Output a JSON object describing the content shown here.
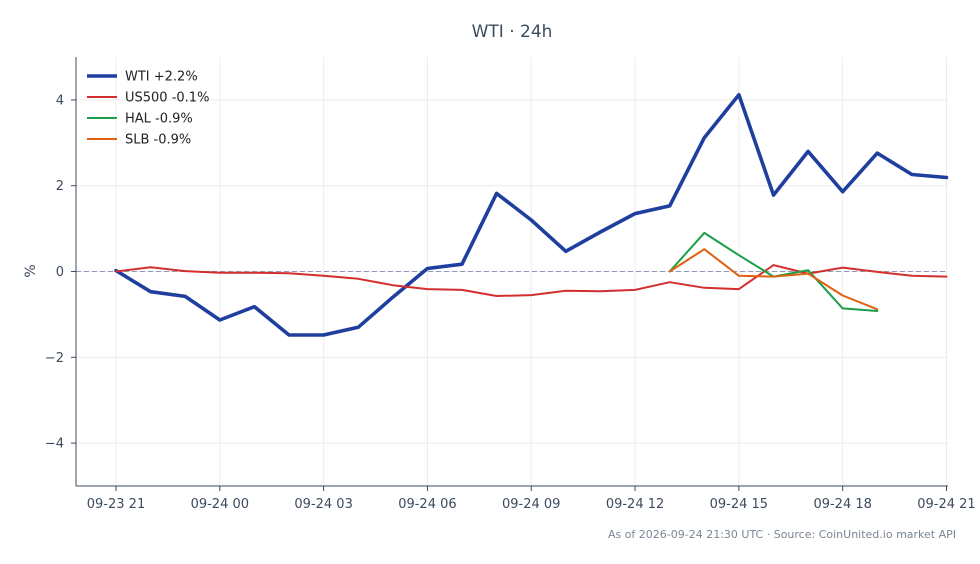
{
  "chart_data": {
    "type": "line",
    "title": "WTI · 24h",
    "xlabel": "",
    "ylabel": "%",
    "ylim": [
      -5,
      5
    ],
    "yticks": [
      -4,
      -2,
      0,
      2,
      4
    ],
    "ytick_labels": [
      "−4",
      "−2",
      "0",
      "2",
      "4"
    ],
    "xlim": [
      0,
      25.2
    ],
    "xticks": [
      0,
      3,
      6,
      9,
      12,
      15,
      18,
      21,
      24
    ],
    "xtick_labels": [
      "09-23 21",
      "09-24 00",
      "09-24 03",
      "09-24 06",
      "09-24 09",
      "09-24 12",
      "09-24 15",
      "09-24 18",
      "09-24 21"
    ],
    "x_axis_note": "hourly points from 09-23 21 to 09-24 21",
    "grid": true,
    "baseline": 0,
    "legend_position": "top-left",
    "series": [
      {
        "name": "WTI +2.2%",
        "color": "#1f3f9e",
        "x": [
          0,
          1,
          2,
          3,
          4,
          5,
          6,
          7,
          8,
          9,
          10,
          11,
          12,
          13,
          14,
          15,
          16,
          17,
          18,
          19,
          20,
          21,
          22,
          23,
          24
        ],
        "values": [
          0.02,
          -0.47,
          -0.58,
          -1.13,
          -0.82,
          -1.48,
          -1.48,
          -1.3,
          -0.6,
          0.07,
          0.17,
          1.82,
          1.2,
          0.47,
          0.92,
          1.35,
          1.53,
          3.12,
          4.12,
          1.78,
          2.8,
          1.86,
          2.76,
          2.26,
          2.19
        ]
      },
      {
        "name": "US500 -0.1%",
        "color": "#d32f2f",
        "x": [
          0,
          1,
          2,
          3,
          4,
          5,
          6,
          7,
          8,
          9,
          10,
          11,
          12,
          13,
          14,
          15,
          16,
          17,
          18,
          19,
          20,
          21,
          22,
          23,
          24
        ],
        "values": [
          0.0,
          0.1,
          0.01,
          -0.03,
          -0.03,
          -0.04,
          -0.1,
          -0.17,
          -0.32,
          -0.41,
          -0.43,
          -0.57,
          -0.55,
          -0.45,
          -0.46,
          -0.43,
          -0.25,
          -0.38,
          -0.41,
          0.15,
          -0.05,
          0.09,
          -0.01,
          -0.1,
          -0.12
        ]
      },
      {
        "name": "HAL -0.9%",
        "color": "#1a9e47",
        "x": [
          16,
          17,
          18,
          19,
          20,
          21,
          22
        ],
        "values": [
          0.0,
          0.9,
          0.38,
          -0.12,
          0.03,
          -0.86,
          -0.92
        ]
      },
      {
        "name": "SLB -0.9%",
        "color": "#e06010",
        "x": [
          16,
          17,
          18,
          19,
          20,
          21,
          22
        ],
        "values": [
          0.0,
          0.52,
          -0.1,
          -0.12,
          -0.05,
          -0.56,
          -0.88
        ]
      }
    ]
  },
  "footer": "As of 2026-09-24 21:30 UTC · Source: CoinUnited.io market API"
}
